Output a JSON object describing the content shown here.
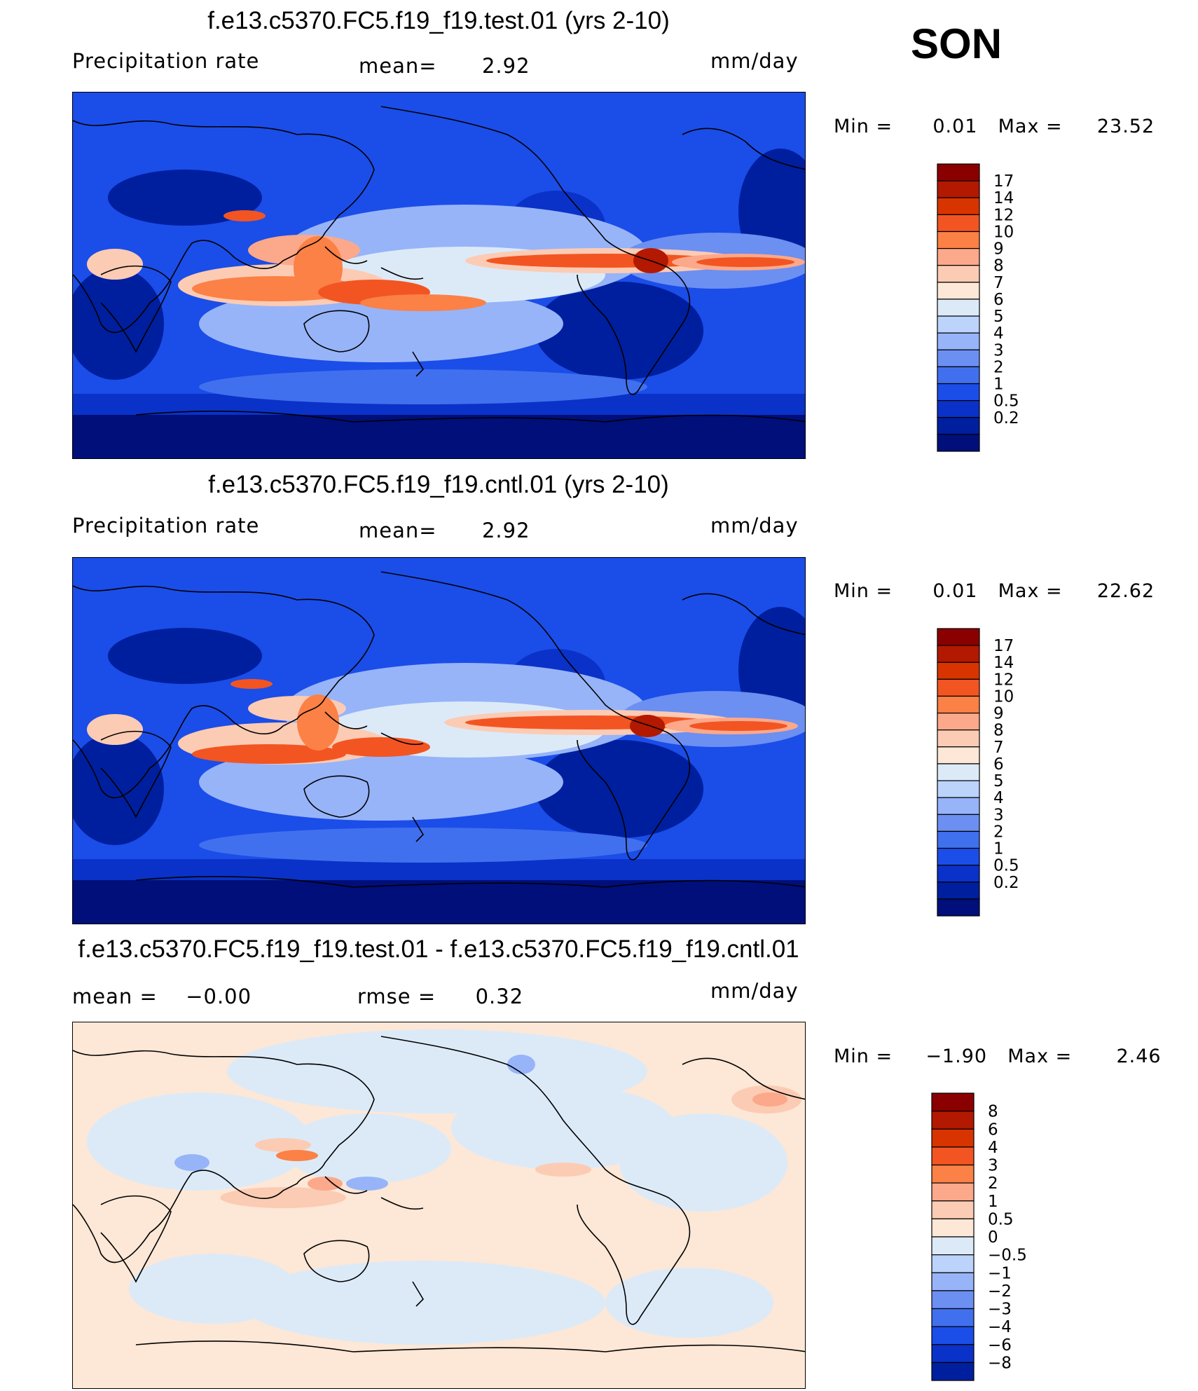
{
  "season": "SON",
  "panels": [
    {
      "id": "test",
      "title": "f.e13.c5370.FC5.f19_f19.test.01 (yrs 2-10)",
      "left_label": "Precipitation  rate",
      "mid_label_name": "mean=",
      "mid_label_value": "2.92",
      "units": "mm/day",
      "min_text": "Min  =",
      "min_value": "0.01",
      "max_text": "Max  =",
      "max_value": "23.52",
      "colorbar_labels": [
        "17",
        "14",
        "12",
        "10",
        "9",
        "8",
        "7",
        "6",
        "5",
        "4",
        "3",
        "2",
        "1",
        "0.5",
        "0.2"
      ]
    },
    {
      "id": "cntl",
      "title": "f.e13.c5370.FC5.f19_f19.cntl.01 (yrs 2-10)",
      "left_label": "Precipitation  rate",
      "mid_label_name": "mean=",
      "mid_label_value": "2.92",
      "units": "mm/day",
      "min_text": "Min  =",
      "min_value": "0.01",
      "max_text": "Max  =",
      "max_value": "22.62",
      "colorbar_labels": [
        "17",
        "14",
        "12",
        "10",
        "9",
        "8",
        "7",
        "6",
        "5",
        "4",
        "3",
        "2",
        "1",
        "0.5",
        "0.2"
      ]
    },
    {
      "id": "diff",
      "title": "f.e13.c5370.FC5.f19_f19.test.01 - f.e13.c5370.FC5.f19_f19.cntl.01",
      "left_label_name": "mean  =",
      "left_label_value": "−0.00",
      "mid_label_name": "rmse  =",
      "mid_label_value": "0.32",
      "units": "mm/day",
      "min_text": "Min  =",
      "min_value": "−1.90",
      "max_text": "Max  =",
      "max_value": "2.46",
      "colorbar_labels": [
        "8",
        "6",
        "4",
        "3",
        "2",
        "1",
        "0.5",
        "0",
        "−0.5",
        "−1",
        "−2",
        "−3",
        "−4",
        "−6",
        "−8"
      ]
    }
  ],
  "colors": {
    "precip_scale": [
      "#8a0000",
      "#b31800",
      "#d83400",
      "#f25522",
      "#fb8146",
      "#fca88a",
      "#fccbb4",
      "#fde7d6",
      "#dceaf8",
      "#bcd3fb",
      "#97b4f9",
      "#6c8ff2",
      "#4170ee",
      "#1b4de8",
      "#0a32c8",
      "#001f9e",
      "#000f7a"
    ],
    "diff_scale": [
      "#8a0000",
      "#b31800",
      "#d83400",
      "#f25522",
      "#fb8146",
      "#fca88a",
      "#fccbb4",
      "#fde7d6",
      "#dceaf8",
      "#bcd3fb",
      "#97b4f9",
      "#6c8ff2",
      "#4170ee",
      "#1b4de8",
      "#0a32c8",
      "#001f9e"
    ],
    "coastline": "#000000"
  }
}
